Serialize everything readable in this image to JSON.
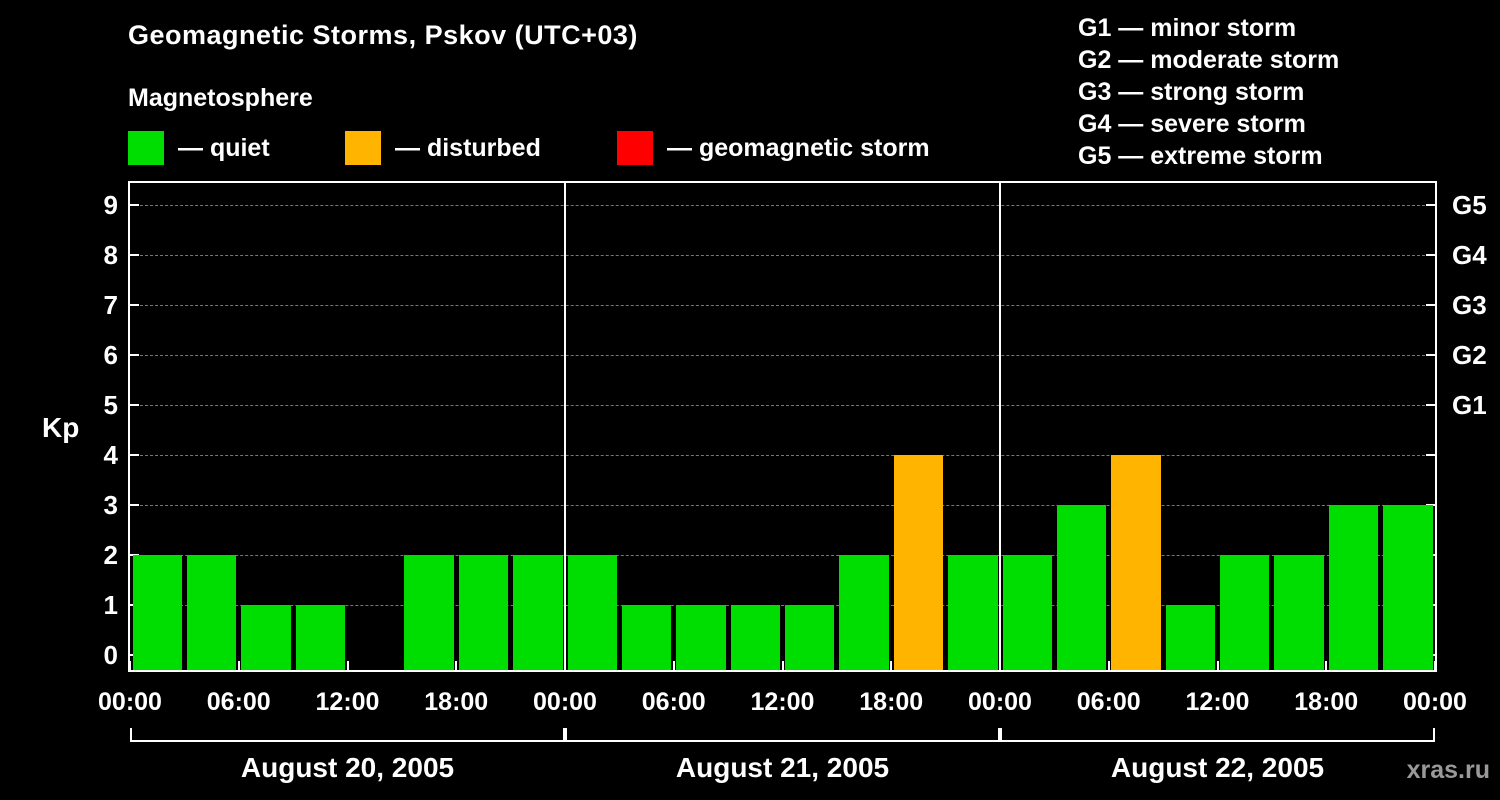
{
  "title": "Geomagnetic Storms, Pskov (UTC+03)",
  "ylabel": "Kp",
  "watermark": "xras.ru",
  "legend": {
    "title": "Magnetosphere",
    "items": [
      {
        "name": "quiet",
        "label": "— quiet",
        "color": "#00dd00"
      },
      {
        "name": "disturbed",
        "label": "— disturbed",
        "color": "#ffb400"
      },
      {
        "name": "storm",
        "label": "— geomagnetic storm",
        "color": "#ff0000"
      }
    ]
  },
  "storm_scale": {
    "items": [
      "G1 — minor storm",
      "G2 — moderate storm",
      "G3 — strong storm",
      "G4 — severe storm",
      "G5 — extreme storm"
    ]
  },
  "chart_data": {
    "type": "bar",
    "title": "Geomagnetic Storms, Pskov (UTC+03)",
    "ylabel": "Kp",
    "ylim": [
      0,
      9.5
    ],
    "yticks": [
      0,
      1,
      2,
      3,
      4,
      5,
      6,
      7,
      8,
      9
    ],
    "right_axis": [
      {
        "value": 5,
        "label": "G1"
      },
      {
        "value": 6,
        "label": "G2"
      },
      {
        "value": 7,
        "label": "G3"
      },
      {
        "value": 8,
        "label": "G4"
      },
      {
        "value": 9,
        "label": "G5"
      }
    ],
    "x_tick_labels": [
      "00:00",
      "06:00",
      "12:00",
      "18:00",
      "00:00",
      "06:00",
      "12:00",
      "18:00",
      "00:00",
      "06:00",
      "12:00",
      "18:00",
      "00:00"
    ],
    "interval_hours": 3,
    "days": [
      {
        "label": "August 20, 2005",
        "values": [
          2,
          2,
          1,
          1,
          0,
          2,
          2,
          2
        ]
      },
      {
        "label": "August 21, 2005",
        "values": [
          2,
          1,
          1,
          1,
          1,
          2,
          4,
          2
        ]
      },
      {
        "label": "August 22, 2005",
        "values": [
          2,
          3,
          4,
          1,
          2,
          2,
          3,
          3
        ]
      }
    ],
    "color_rules": {
      "quiet_max_kp": 3,
      "disturbed_max_kp": 4
    },
    "colors": {
      "quiet": "#00dd00",
      "disturbed": "#ffb400",
      "storm": "#ff0000"
    },
    "grid": "dashed horizontal lines at integer Kp levels",
    "legend_position": "top"
  }
}
